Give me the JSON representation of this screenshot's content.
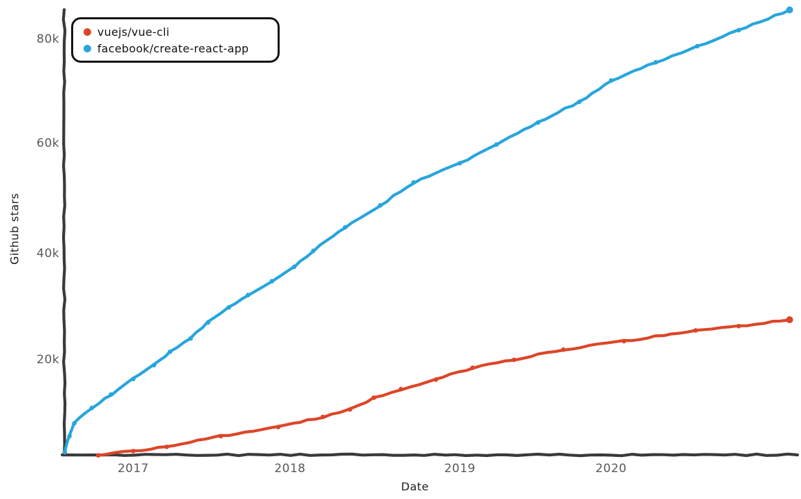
{
  "chart_data": {
    "type": "line",
    "title": "",
    "xlabel": "Date",
    "ylabel": "Github stars",
    "legend_position": "upper-left",
    "grid": false,
    "axis_color": "#3a3a3a",
    "xlim": [
      2016.55,
      2021.17
    ],
    "ylim": [
      0,
      86000
    ],
    "xticks": {
      "values": [
        2017,
        2018,
        2019,
        2020
      ],
      "labels": [
        "2017",
        "2018",
        "2019",
        "2020"
      ]
    },
    "yticks": {
      "values": [
        20000,
        40000,
        60000,
        80000
      ],
      "labels": [
        "20k",
        "40k",
        "60k",
        "80k"
      ]
    },
    "series": [
      {
        "name": "vuejs/vue-cli",
        "color": "#dd4528",
        "points": [
          [
            2016.78,
            2100
          ],
          [
            2017.0,
            2900
          ],
          [
            2017.21,
            3700
          ],
          [
            2017.55,
            5700
          ],
          [
            2017.91,
            7400
          ],
          [
            2018.19,
            9300
          ],
          [
            2018.36,
            10700
          ],
          [
            2018.51,
            12900
          ],
          [
            2018.68,
            14500
          ],
          [
            2018.9,
            16300
          ],
          [
            2019.13,
            18500
          ],
          [
            2019.39,
            20000
          ],
          [
            2019.7,
            21900
          ],
          [
            2020.08,
            23500
          ],
          [
            2020.53,
            25500
          ],
          [
            2020.8,
            26300
          ],
          [
            2021.12,
            27500
          ]
        ]
      },
      {
        "name": "facebook/create-react-app",
        "color": "#28a5dd",
        "points": [
          [
            2016.57,
            2700
          ],
          [
            2016.6,
            5700
          ],
          [
            2016.63,
            8100
          ],
          [
            2016.74,
            11000
          ],
          [
            2016.86,
            13500
          ],
          [
            2017.0,
            16400
          ],
          [
            2017.13,
            19000
          ],
          [
            2017.23,
            21500
          ],
          [
            2017.36,
            24000
          ],
          [
            2017.47,
            27000
          ],
          [
            2017.6,
            29800
          ],
          [
            2017.72,
            32100
          ],
          [
            2017.87,
            34700
          ],
          [
            2018.01,
            37400
          ],
          [
            2018.13,
            40400
          ],
          [
            2018.33,
            44800
          ],
          [
            2018.55,
            48900
          ],
          [
            2018.76,
            53200
          ],
          [
            2019.05,
            56800
          ],
          [
            2019.28,
            60300
          ],
          [
            2019.54,
            64400
          ],
          [
            2019.8,
            68300
          ],
          [
            2020.0,
            72300
          ],
          [
            2020.28,
            75700
          ],
          [
            2020.54,
            78700
          ],
          [
            2020.8,
            81700
          ],
          [
            2021.12,
            85500
          ]
        ]
      }
    ]
  }
}
